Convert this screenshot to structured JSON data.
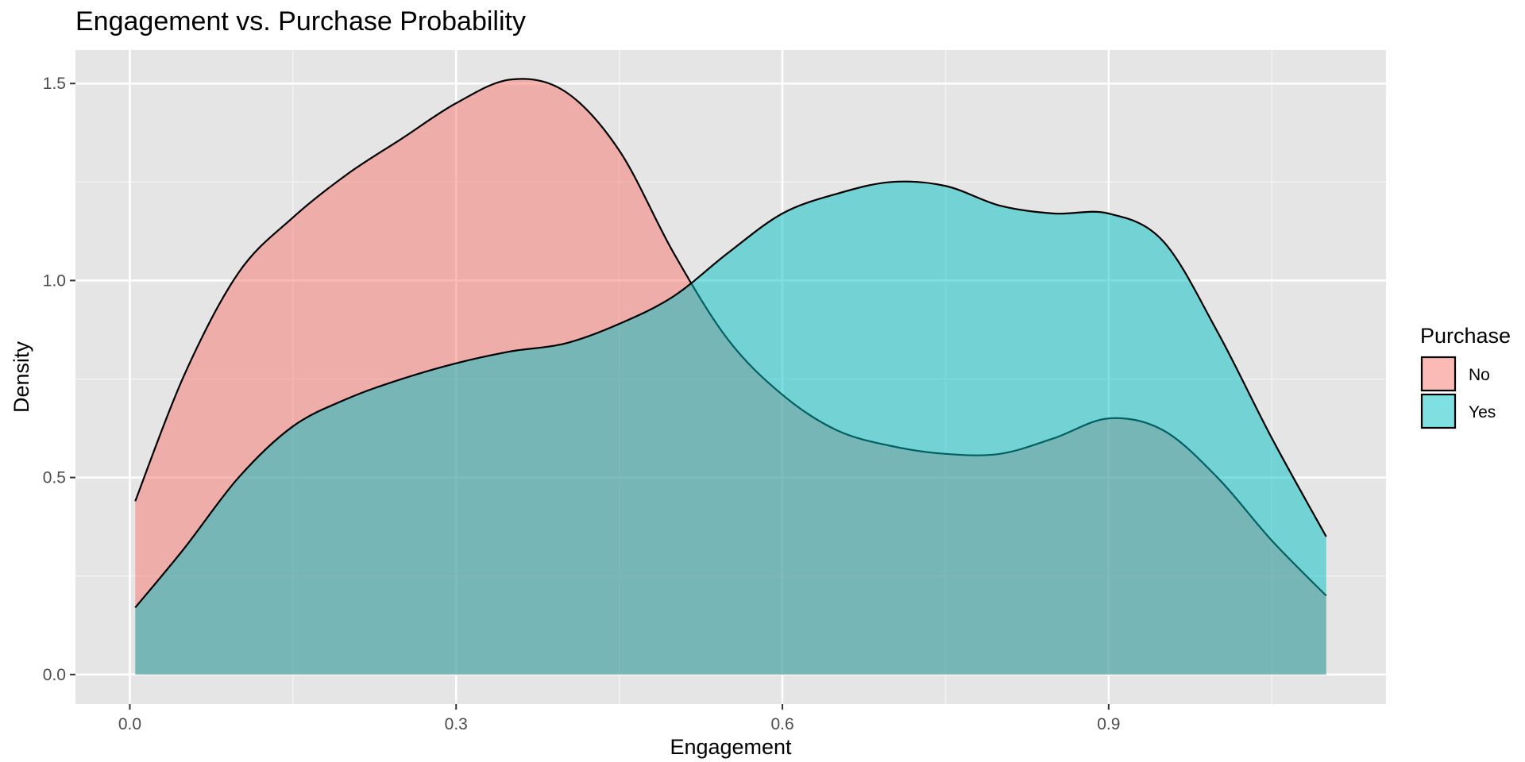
{
  "chart_data": {
    "type": "area",
    "title": "Engagement vs. Purchase Probability",
    "xlabel": "Engagement",
    "ylabel": "Density",
    "xlim": [
      -0.05,
      1.155
    ],
    "ylim": [
      -0.075,
      1.585
    ],
    "x_ticks": [
      0.0,
      0.3,
      0.6,
      0.9
    ],
    "x_tick_labels": [
      "0.0",
      "0.3",
      "0.6",
      "0.9"
    ],
    "y_ticks": [
      0.0,
      0.5,
      1.0,
      1.5
    ],
    "y_tick_labels": [
      "0.0",
      "0.5",
      "1.0",
      "1.5"
    ],
    "grid": true,
    "legend": {
      "title": "Purchase",
      "position": "right"
    },
    "series": [
      {
        "name": "No",
        "color": "#F8766D",
        "x": [
          0.005,
          0.05,
          0.1,
          0.15,
          0.2,
          0.25,
          0.3,
          0.35,
          0.4,
          0.45,
          0.5,
          0.55,
          0.6,
          0.65,
          0.7,
          0.75,
          0.8,
          0.85,
          0.9,
          0.95,
          1.0,
          1.05,
          1.1
        ],
        "values": [
          0.44,
          0.76,
          1.02,
          1.16,
          1.27,
          1.36,
          1.45,
          1.51,
          1.48,
          1.33,
          1.07,
          0.85,
          0.71,
          0.62,
          0.58,
          0.56,
          0.56,
          0.6,
          0.65,
          0.62,
          0.5,
          0.34,
          0.2
        ]
      },
      {
        "name": "Yes",
        "color": "#00BFC4",
        "x": [
          0.005,
          0.05,
          0.1,
          0.15,
          0.2,
          0.25,
          0.3,
          0.35,
          0.4,
          0.45,
          0.5,
          0.55,
          0.6,
          0.65,
          0.7,
          0.75,
          0.8,
          0.85,
          0.9,
          0.95,
          1.0,
          1.05,
          1.1
        ],
        "values": [
          0.17,
          0.32,
          0.5,
          0.63,
          0.7,
          0.75,
          0.79,
          0.82,
          0.84,
          0.89,
          0.96,
          1.07,
          1.17,
          1.22,
          1.25,
          1.24,
          1.19,
          1.17,
          1.17,
          1.1,
          0.87,
          0.6,
          0.35
        ]
      }
    ]
  }
}
